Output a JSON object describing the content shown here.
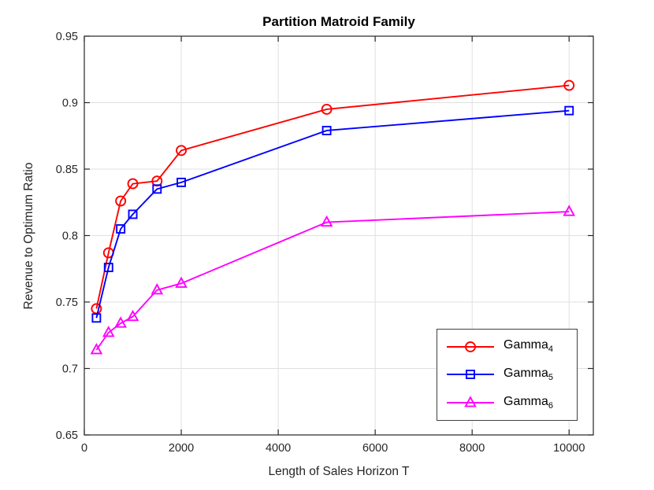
{
  "chart_data": {
    "type": "line",
    "title": "Partition Matroid Family",
    "xlabel": "Length of Sales Horizon T",
    "ylabel": "Revenue to Optimum Ratio",
    "xlim": [
      0,
      10500
    ],
    "ylim": [
      0.65,
      0.95
    ],
    "x_tick_values": [
      0,
      2000,
      4000,
      6000,
      8000,
      10000
    ],
    "x_tick_labels": [
      "0",
      "2000",
      "4000",
      "6000",
      "8000",
      "10000"
    ],
    "y_tick_values": [
      0.65,
      0.7,
      0.75,
      0.8,
      0.85,
      0.9,
      0.95
    ],
    "y_tick_labels": [
      "0.65",
      "0.7",
      "0.75",
      "0.8",
      "0.85",
      "0.9",
      "0.95"
    ],
    "grid": true,
    "legend_position": "lower-right-inside",
    "x": [
      250,
      500,
      750,
      1000,
      1500,
      2000,
      5000,
      10000
    ],
    "series": [
      {
        "name": "Gamma",
        "subscript": "4",
        "color": "#ff0000",
        "marker": "circle",
        "values": [
          0.745,
          0.787,
          0.826,
          0.839,
          0.841,
          0.864,
          0.895,
          0.913
        ]
      },
      {
        "name": "Gamma",
        "subscript": "5",
        "color": "#0000ff",
        "marker": "square",
        "values": [
          0.738,
          0.776,
          0.805,
          0.816,
          0.835,
          0.84,
          0.879,
          0.894
        ]
      },
      {
        "name": "Gamma",
        "subscript": "6",
        "color": "#ff00ff",
        "marker": "triangle",
        "values": [
          0.714,
          0.727,
          0.734,
          0.739,
          0.759,
          0.764,
          0.81,
          0.818
        ]
      }
    ],
    "colors": {
      "grid": "#e0e0e0",
      "axis": "#262626",
      "tick_label": "#262626",
      "title": "#000000",
      "background": "#ffffff"
    }
  }
}
